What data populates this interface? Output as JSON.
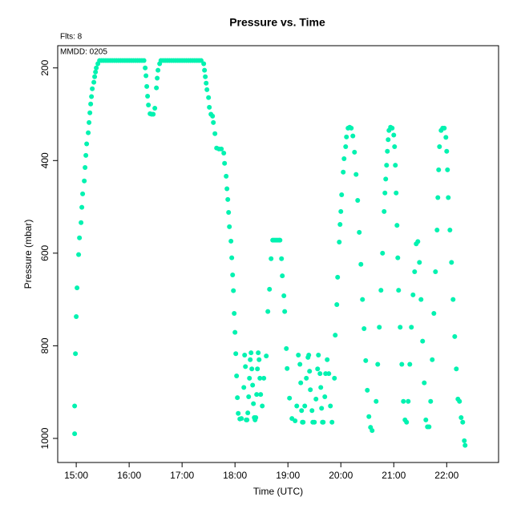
{
  "chart_data": {
    "type": "scatter",
    "title": "Pressure  vs. Time",
    "subtitle": "Flts: 8",
    "annotation": "MMDD: 0205",
    "x_label": "Time (UTC)",
    "y_label": "Pressure (mbar)",
    "xlim": [
      14.65,
      22.98
    ],
    "ylim": [
      152,
      1052
    ],
    "y_inverted": true,
    "xticks": [
      {
        "value": 15,
        "label": "15:00"
      },
      {
        "value": 16,
        "label": "16:00"
      },
      {
        "value": 17,
        "label": "17:00"
      },
      {
        "value": 18,
        "label": "18:00"
      },
      {
        "value": 19,
        "label": "19:00"
      },
      {
        "value": 20,
        "label": "20:00"
      },
      {
        "value": 21,
        "label": "21:00"
      },
      {
        "value": 22,
        "label": "22:00"
      }
    ],
    "yticks": [
      200,
      400,
      600,
      800,
      1000
    ],
    "grid": false,
    "series": [
      {
        "color": "#00f2b0",
        "x": [
          14.97,
          14.97,
          14.985,
          15.0,
          15.015,
          15.045,
          15.061,
          15.091,
          15.106,
          15.121,
          15.152,
          15.167,
          15.182,
          15.197,
          15.227,
          15.242,
          15.258,
          15.273,
          15.288,
          15.303,
          15.333,
          15.348,
          15.364,
          15.379,
          15.409,
          15.44,
          15.48,
          15.52,
          15.56,
          15.6,
          15.64,
          15.68,
          15.72,
          15.76,
          15.8,
          15.84,
          15.88,
          15.92,
          15.96,
          16.0,
          16.04,
          16.08,
          16.12,
          16.16,
          16.2,
          16.24,
          16.28,
          16.303,
          16.318,
          16.333,
          16.348,
          16.364,
          16.394,
          16.424,
          16.455,
          16.485,
          16.515,
          16.53,
          16.545,
          16.576,
          16.6,
          16.64,
          16.68,
          16.72,
          16.76,
          16.8,
          16.84,
          16.88,
          16.92,
          16.96,
          17.0,
          17.04,
          17.08,
          17.12,
          17.16,
          17.2,
          17.24,
          17.28,
          17.32,
          17.36,
          17.409,
          17.424,
          17.439,
          17.455,
          17.47,
          17.5,
          17.515,
          17.545,
          17.576,
          17.591,
          17.621,
          17.652,
          17.697,
          17.742,
          17.788,
          17.803,
          17.833,
          17.848,
          17.864,
          17.879,
          17.894,
          17.924,
          17.939,
          17.955,
          17.97,
          17.985,
          18.0,
          18.015,
          18.03,
          18.045,
          18.061,
          18.091,
          18.121,
          18.167,
          18.182,
          18.197,
          18.212,
          18.227,
          18.242,
          18.258,
          18.273,
          18.288,
          18.303,
          18.318,
          18.333,
          18.348,
          18.364,
          18.379,
          18.394,
          18.409,
          18.424,
          18.439,
          18.455,
          18.47,
          18.485,
          18.515,
          18.545,
          18.591,
          18.621,
          18.652,
          18.682,
          18.712,
          18.74,
          18.77,
          18.8,
          18.83,
          18.85,
          18.879,
          18.894,
          18.924,
          18.939,
          18.97,
          18.985,
          19.03,
          19.076,
          19.136,
          19.167,
          19.197,
          19.227,
          19.242,
          19.258,
          19.273,
          19.288,
          19.318,
          19.348,
          19.379,
          19.394,
          19.409,
          19.424,
          19.455,
          19.47,
          19.5,
          19.53,
          19.561,
          19.576,
          19.606,
          19.621,
          19.636,
          19.652,
          19.667,
          19.697,
          19.712,
          19.742,
          19.773,
          19.803,
          19.833,
          19.879,
          19.894,
          19.924,
          19.939,
          19.97,
          19.985,
          20.0,
          20.015,
          20.045,
          20.061,
          20.091,
          20.106,
          20.136,
          20.167,
          20.197,
          20.227,
          20.258,
          20.288,
          20.318,
          20.348,
          20.379,
          20.409,
          20.439,
          20.47,
          20.5,
          20.53,
          20.561,
          20.591,
          20.667,
          20.697,
          20.727,
          20.758,
          20.788,
          20.818,
          20.833,
          20.848,
          20.864,
          20.879,
          20.894,
          20.909,
          20.939,
          20.97,
          21.0,
          21.015,
          21.03,
          21.045,
          21.061,
          21.076,
          21.091,
          21.121,
          21.152,
          21.182,
          21.212,
          21.242,
          21.273,
          21.303,
          21.333,
          21.364,
          21.394,
          21.424,
          21.455,
          21.485,
          21.515,
          21.545,
          21.576,
          21.606,
          21.636,
          21.667,
          21.697,
          21.727,
          21.758,
          21.788,
          21.818,
          21.833,
          21.848,
          21.864,
          21.894,
          21.924,
          21.955,
          21.985,
          22.0,
          22.015,
          22.03,
          22.061,
          22.091,
          22.121,
          22.152,
          22.182,
          22.212,
          22.242,
          22.273,
          22.303,
          22.333,
          22.348
        ],
        "values": [
          990,
          930,
          817,
          737,
          675,
          603,
          567,
          534,
          501,
          472,
          444,
          415,
          389,
          364,
          340,
          318,
          297,
          278,
          262,
          245,
          231,
          219,
          209,
          200,
          191,
          184,
          184,
          184,
          184,
          184,
          184,
          184,
          184,
          184,
          184,
          184,
          184,
          184,
          184,
          184,
          184,
          184,
          184,
          184,
          184,
          184,
          184,
          200,
          217,
          240,
          261,
          280,
          299,
          300,
          300,
          287,
          243,
          222,
          205,
          191,
          184,
          184,
          184,
          184,
          184,
          184,
          184,
          184,
          184,
          184,
          184,
          184,
          184,
          184,
          184,
          184,
          184,
          184,
          184,
          184,
          191,
          205,
          219,
          233,
          247,
          264,
          285,
          300,
          304,
          318,
          342,
          373,
          375,
          375,
          384,
          406,
          434,
          461,
          484,
          512,
          543,
          574,
          610,
          647,
          681,
          730,
          771,
          817,
          865,
          912,
          946,
          958,
          957,
          890,
          820,
          845,
          960,
          960,
          945,
          910,
          870,
          830,
          815,
          850,
          885,
          925,
          955,
          960,
          955,
          905,
          850,
          815,
          830,
          870,
          905,
          930,
          870,
          822,
          726,
          678,
          612,
          572,
          572,
          572,
          572,
          572,
          572,
          612,
          649,
          692,
          726,
          806,
          849,
          913,
          957,
          962,
          930,
          820,
          840,
          880,
          940,
          965,
          965,
          930,
          870,
          825,
          820,
          855,
          895,
          940,
          965,
          965,
          915,
          850,
          820,
          860,
          890,
          935,
          965,
          965,
          910,
          860,
          830,
          860,
          930,
          965,
          870,
          777,
          711,
          652,
          576,
          538,
          510,
          474,
          425,
          396,
          370,
          349,
          330,
          328,
          330,
          347,
          382,
          430,
          486,
          555,
          624,
          700,
          763,
          832,
          896,
          953,
          976,
          983,
          920,
          840,
          760,
          680,
          600,
          510,
          470,
          440,
          410,
          380,
          355,
          335,
          328,
          330,
          345,
          370,
          410,
          470,
          540,
          610,
          680,
          760,
          840,
          920,
          960,
          965,
          920,
          840,
          760,
          690,
          640,
          580,
          575,
          620,
          700,
          790,
          880,
          960,
          975,
          975,
          920,
          830,
          730,
          640,
          550,
          480,
          420,
          370,
          335,
          330,
          330,
          350,
          380,
          420,
          480,
          550,
          620,
          700,
          780,
          850,
          915,
          920,
          955,
          965,
          1005,
          1015
        ]
      }
    ]
  }
}
